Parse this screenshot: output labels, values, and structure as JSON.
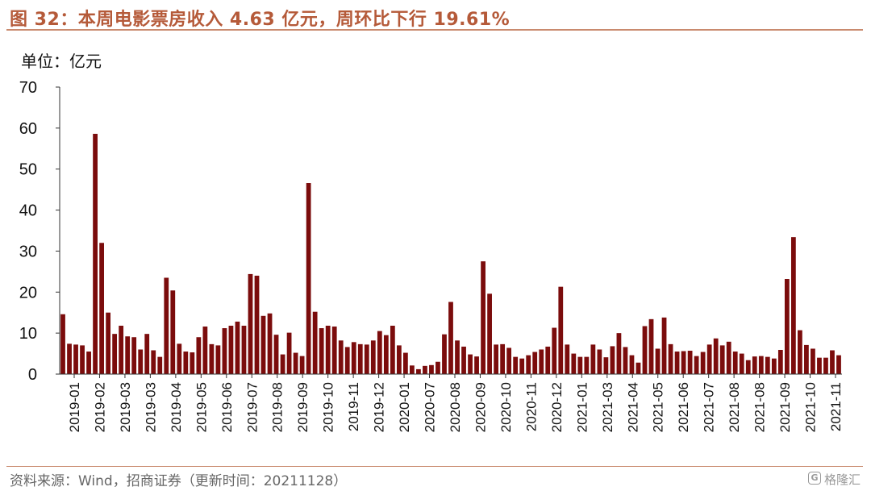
{
  "title": "图 32：本周电影票房收入 4.63 亿元，周环比下行 19.61%",
  "unit_label": "单位：亿元",
  "source": "资料来源：Wind，招商证券（更新时间：20211128）",
  "watermark": "格隆汇",
  "colors": {
    "bar": "#7b0c0c",
    "title": "#b55a39",
    "rule": "#c98a6e",
    "axis": "#333333"
  },
  "chart_data": {
    "type": "bar",
    "title": "",
    "xlabel": "",
    "ylabel": "",
    "ylim": [
      0,
      70
    ],
    "yticks": [
      0,
      10,
      20,
      30,
      40,
      50,
      60,
      70
    ],
    "grid": false,
    "legend": "none",
    "tick_labels": [
      "2019-01",
      "2019-02",
      "2019-03",
      "2019-03",
      "2019-04",
      "2019-05",
      "2019-06",
      "2019-07",
      "2019-08",
      "2019-09",
      "2019-10",
      "2019-11",
      "2019-12",
      "2020-01",
      "2020-07",
      "2020-08",
      "2020-09",
      "2020-10",
      "2020-11",
      "2020-12",
      "2021-01",
      "2021-03",
      "2021-04",
      "2021-05",
      "2021-06",
      "2021-07",
      "2021-08",
      "2021-08",
      "2021-09",
      "2021-10",
      "2021-11"
    ],
    "values": [
      14.6,
      7.4,
      7.2,
      7.0,
      5.5,
      58.6,
      32.0,
      15.0,
      9.8,
      11.8,
      9.2,
      9.0,
      6.0,
      9.8,
      5.8,
      4.2,
      23.5,
      20.4,
      7.4,
      5.5,
      5.3,
      9.0,
      11.6,
      7.3,
      7.0,
      11.2,
      11.8,
      12.8,
      11.8,
      24.4,
      24.0,
      14.2,
      14.8,
      9.6,
      4.8,
      10.1,
      5.2,
      4.4,
      46.6,
      15.2,
      11.2,
      11.8,
      11.6,
      8.2,
      6.6,
      7.8,
      7.3,
      7.2,
      8.2,
      10.5,
      9.5,
      11.8,
      7.0,
      5.2,
      2.1,
      1.2,
      2.0,
      2.2,
      3.0,
      9.7,
      17.6,
      8.2,
      6.7,
      4.8,
      4.3,
      27.5,
      19.6,
      7.2,
      7.3,
      6.4,
      4.2,
      3.8,
      4.6,
      5.4,
      6.0,
      6.7,
      11.3,
      21.3,
      7.2,
      5.0,
      4.2,
      4.2,
      7.2,
      6.0,
      4.1,
      6.8,
      10.0,
      6.6,
      4.6,
      2.8,
      11.7,
      13.4,
      6.2,
      13.8,
      7.3,
      5.5,
      5.6,
      5.7,
      4.4,
      5.4,
      7.2,
      8.7,
      7.0,
      7.9,
      5.5,
      5.0,
      3.4,
      4.3,
      4.4,
      4.2,
      3.8,
      5.9,
      23.2,
      33.4,
      10.7,
      7.1,
      6.2,
      4.0,
      4.0,
      5.8,
      4.6
    ]
  }
}
